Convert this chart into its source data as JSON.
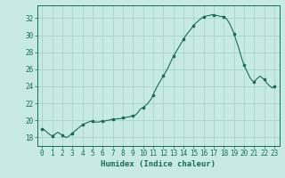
{
  "title": "",
  "xlabel": "Humidex (Indice chaleur)",
  "ylabel": "",
  "bg_color": "#c8eae4",
  "grid_color": "#a0cfc8",
  "line_color": "#1a6b5a",
  "marker_color": "#1a6b5a",
  "xlim": [
    -0.5,
    23.5
  ],
  "ylim": [
    17.0,
    33.5
  ],
  "yticks": [
    18,
    20,
    22,
    24,
    26,
    28,
    30,
    32
  ],
  "xticks": [
    0,
    1,
    2,
    3,
    4,
    5,
    6,
    7,
    8,
    9,
    10,
    11,
    12,
    13,
    14,
    15,
    16,
    17,
    18,
    19,
    20,
    21,
    22,
    23
  ],
  "x": [
    0,
    0.2,
    0.4,
    0.6,
    0.8,
    1.0,
    1.2,
    1.4,
    1.6,
    1.8,
    2.0,
    2.2,
    2.4,
    2.6,
    2.8,
    3.0,
    3.2,
    3.4,
    3.6,
    3.8,
    4.0,
    4.2,
    4.4,
    4.6,
    4.8,
    5.0,
    5.2,
    5.4,
    5.6,
    5.8,
    6.0,
    6.2,
    6.4,
    6.6,
    6.8,
    7.0,
    7.2,
    7.4,
    7.6,
    7.8,
    8.0,
    8.2,
    8.4,
    8.6,
    8.8,
    9.0,
    9.2,
    9.4,
    9.6,
    9.8,
    10.0,
    10.2,
    10.4,
    10.6,
    10.8,
    11.0,
    11.2,
    11.4,
    11.6,
    11.8,
    12.0,
    12.2,
    12.4,
    12.6,
    12.8,
    13.0,
    13.2,
    13.4,
    13.6,
    13.8,
    14.0,
    14.2,
    14.4,
    14.6,
    14.8,
    15.0,
    15.2,
    15.4,
    15.6,
    15.8,
    16.0,
    16.2,
    16.4,
    16.6,
    16.8,
    17.0,
    17.2,
    17.4,
    17.6,
    17.8,
    18.0,
    18.2,
    18.4,
    18.6,
    18.8,
    19.0,
    19.2,
    19.4,
    19.6,
    19.8,
    20.0,
    20.2,
    20.4,
    20.6,
    20.8,
    21.0,
    21.2,
    21.4,
    21.6,
    21.8,
    22.0,
    22.2,
    22.4,
    22.6,
    22.8,
    23.0
  ],
  "y": [
    19.0,
    18.9,
    18.7,
    18.5,
    18.3,
    18.2,
    18.3,
    18.5,
    18.6,
    18.4,
    18.3,
    18.1,
    18.0,
    18.1,
    18.3,
    18.5,
    18.7,
    18.9,
    19.1,
    19.3,
    19.5,
    19.6,
    19.7,
    19.8,
    19.9,
    19.9,
    19.8,
    19.8,
    19.8,
    19.9,
    19.9,
    19.9,
    20.0,
    20.0,
    20.1,
    20.1,
    20.1,
    20.2,
    20.2,
    20.2,
    20.3,
    20.3,
    20.4,
    20.4,
    20.5,
    20.5,
    20.6,
    20.8,
    21.1,
    21.4,
    21.5,
    21.7,
    21.9,
    22.2,
    22.5,
    23.0,
    23.5,
    24.0,
    24.4,
    24.8,
    25.2,
    25.6,
    26.0,
    26.5,
    27.0,
    27.5,
    27.9,
    28.3,
    28.7,
    29.1,
    29.5,
    29.9,
    30.2,
    30.5,
    30.8,
    31.1,
    31.4,
    31.6,
    31.8,
    32.0,
    32.1,
    32.2,
    32.3,
    32.3,
    32.4,
    32.4,
    32.3,
    32.3,
    32.2,
    32.2,
    32.1,
    32.0,
    31.7,
    31.3,
    30.8,
    30.2,
    29.5,
    28.8,
    28.0,
    27.2,
    26.5,
    26.0,
    25.5,
    25.0,
    24.7,
    24.5,
    24.8,
    25.0,
    25.2,
    25.0,
    24.8,
    24.5,
    24.2,
    24.0,
    23.8,
    24.0
  ],
  "marker_x": [
    0,
    1,
    2,
    3,
    4,
    5,
    6,
    7,
    8,
    9,
    10,
    11,
    12,
    13,
    14,
    15,
    16,
    17,
    18,
    19,
    20,
    21,
    22,
    23
  ],
  "marker_y": [
    19.0,
    18.2,
    18.3,
    18.5,
    19.5,
    19.9,
    19.9,
    20.1,
    20.3,
    20.5,
    21.5,
    23.0,
    25.2,
    27.5,
    29.5,
    31.1,
    32.1,
    32.3,
    32.1,
    30.2,
    26.5,
    24.5,
    24.8,
    24.0
  ]
}
